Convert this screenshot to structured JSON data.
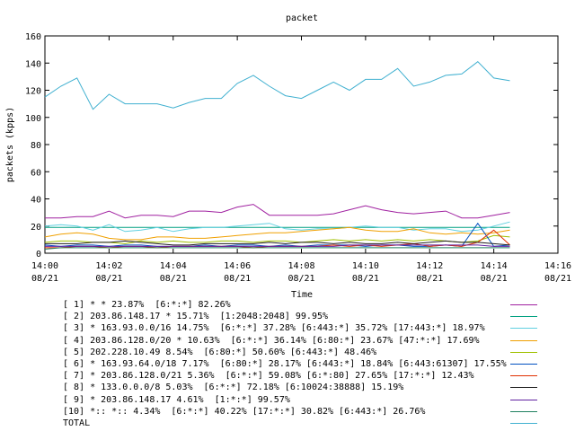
{
  "chart_data": {
    "type": "line",
    "title": "packet",
    "ylabel": "packets (kpps)",
    "xlabel": "Time",
    "ylim": [
      0,
      160
    ],
    "y_ticks": [
      "0",
      "20",
      "40",
      "60",
      "80",
      "100",
      "120",
      "140",
      "160"
    ],
    "x_ticks": [
      {
        "time": "14:00",
        "date": "08/21"
      },
      {
        "time": "14:02",
        "date": "08/21"
      },
      {
        "time": "14:04",
        "date": "08/21"
      },
      {
        "time": "14:06",
        "date": "08/21"
      },
      {
        "time": "14:08",
        "date": "08/21"
      },
      {
        "time": "14:10",
        "date": "08/21"
      },
      {
        "time": "14:12",
        "date": "08/21"
      },
      {
        "time": "14:14",
        "date": "08/21"
      },
      {
        "time": "14:16",
        "date": "08/21"
      }
    ],
    "x_range": [
      "14:00",
      "14:16"
    ],
    "x": [
      "14:00:00",
      "14:00:30",
      "14:01:00",
      "14:01:30",
      "14:02:00",
      "14:02:30",
      "14:03:00",
      "14:03:30",
      "14:04:00",
      "14:04:30",
      "14:05:00",
      "14:05:30",
      "14:06:00",
      "14:06:30",
      "14:07:00",
      "14:07:30",
      "14:08:00",
      "14:08:30",
      "14:09:00",
      "14:09:30",
      "14:10:00",
      "14:10:30",
      "14:11:00",
      "14:11:30",
      "14:12:00",
      "14:12:30",
      "14:13:00",
      "14:13:30",
      "14:14:00",
      "14:14:30"
    ],
    "grid": false,
    "legend_position": "bottom",
    "series": [
      {
        "name": "[ 1] * * 23.87%  [6:*:*] 82.26%",
        "color": "#a020a0",
        "values": [
          26,
          26,
          27,
          27,
          31,
          26,
          28,
          28,
          27,
          31,
          31,
          30,
          34,
          36,
          28,
          28,
          28,
          28,
          29,
          32,
          35,
          32,
          30,
          29,
          30,
          31,
          26,
          26,
          28,
          30
        ]
      },
      {
        "name": "[ 2] 203.86.148.17 * 15.71%  [1:2048:2048] 99.95%",
        "color": "#00a080",
        "values": [
          19,
          19,
          19,
          19,
          19,
          19,
          19,
          19,
          19,
          19,
          19,
          19,
          19,
          19,
          19,
          19,
          19,
          19,
          19,
          19,
          19,
          19,
          19,
          19,
          19,
          19,
          19,
          19,
          19,
          19
        ]
      },
      {
        "name": "[ 3] * 163.93.0.0/16 14.75%  [6:*:*] 37.28% [6:443:*] 35.72% [17:443:*] 18.97%",
        "color": "#60d0e0",
        "values": [
          20,
          21,
          20,
          17,
          21,
          16,
          17,
          19,
          16,
          18,
          19,
          19,
          20,
          21,
          22,
          18,
          17,
          18,
          18,
          19,
          20,
          19,
          19,
          17,
          18,
          18,
          16,
          17,
          20,
          23
        ]
      },
      {
        "name": "[ 4] 203.86.128.0/20 * 10.63%  [6:*:*] 36.14% [6:80:*] 23.67% [47:*:*] 17.69%",
        "color": "#f0a000",
        "values": [
          12,
          14,
          15,
          14,
          11,
          10,
          10,
          12,
          12,
          11,
          11,
          12,
          13,
          14,
          15,
          15,
          16,
          17,
          18,
          19,
          17,
          16,
          16,
          18,
          15,
          14,
          15,
          14,
          15,
          17
        ]
      },
      {
        "name": "[ 5] 202.228.10.49 8.54%  [6:80:*] 50.60% [6:443:*] 48.46%",
        "color": "#a0c000",
        "values": [
          8,
          9,
          9,
          8,
          8,
          7,
          9,
          8,
          9,
          8,
          8,
          9,
          9,
          8,
          9,
          9,
          8,
          9,
          10,
          9,
          10,
          9,
          10,
          9,
          10,
          9,
          8,
          9,
          13,
          12
        ]
      },
      {
        "name": "[ 6] * 163.93.64.0/18 7.17%  [6:80:*] 28.17% [6:443:*] 18.84% [6:443:61307] 17.55%",
        "color": "#0050c0",
        "values": [
          6,
          5,
          6,
          6,
          5,
          6,
          6,
          5,
          5,
          5,
          6,
          5,
          6,
          6,
          5,
          6,
          5,
          6,
          6,
          6,
          5,
          6,
          6,
          5,
          5,
          6,
          5,
          22,
          5,
          6
        ]
      },
      {
        "name": "[ 7] * 203.86.128.0/21 5.36%  [6:*:*] 59.08% [6:*:80] 27.65% [17:*:*] 12.43%",
        "color": "#e03000",
        "values": [
          4,
          4,
          5,
          5,
          4,
          5,
          5,
          4,
          5,
          5,
          5,
          5,
          5,
          4,
          5,
          5,
          5,
          5,
          6,
          5,
          6,
          5,
          6,
          7,
          5,
          6,
          5,
          8,
          17,
          6
        ]
      },
      {
        "name": "[ 8] * 133.0.0.0/8 5.03%  [6:*:*] 72.18% [6:10024:38888] 15.19%",
        "color": "#202020",
        "values": [
          7,
          7,
          7,
          8,
          8,
          9,
          8,
          7,
          6,
          6,
          7,
          7,
          7,
          7,
          8,
          7,
          8,
          8,
          7,
          8,
          7,
          7,
          8,
          7,
          8,
          9,
          8,
          8,
          7,
          6
        ]
      },
      {
        "name": "[ 9] * 203.86.148.17 4.61%  [1:*:*] 99.57%",
        "color": "#6020a0",
        "values": [
          5,
          5,
          5,
          5,
          5,
          5,
          5,
          5,
          5,
          5,
          5,
          5,
          5,
          5,
          5,
          5,
          5,
          5,
          5,
          6,
          6,
          6,
          6,
          6,
          6,
          6,
          6,
          6,
          5,
          5
        ]
      },
      {
        "name": "[10] *:: *:: 4.34%  [6:*:*] 40.22% [17:*:*] 30.82% [6:443:*] 26.76%",
        "color": "#208060",
        "values": [
          3,
          4,
          4,
          4,
          4,
          4,
          4,
          4,
          4,
          4,
          4,
          4,
          4,
          4,
          4,
          4,
          4,
          4,
          4,
          4,
          4,
          4,
          4,
          4,
          4,
          4,
          4,
          4,
          4,
          4
        ]
      },
      {
        "name": "TOTAL",
        "color": "#40b0d0",
        "values": [
          115,
          123,
          129,
          106,
          117,
          110,
          110,
          110,
          107,
          111,
          114,
          114,
          125,
          131,
          123,
          116,
          114,
          120,
          126,
          120,
          128,
          128,
          136,
          123,
          126,
          131,
          132,
          141,
          129,
          127
        ]
      }
    ]
  }
}
